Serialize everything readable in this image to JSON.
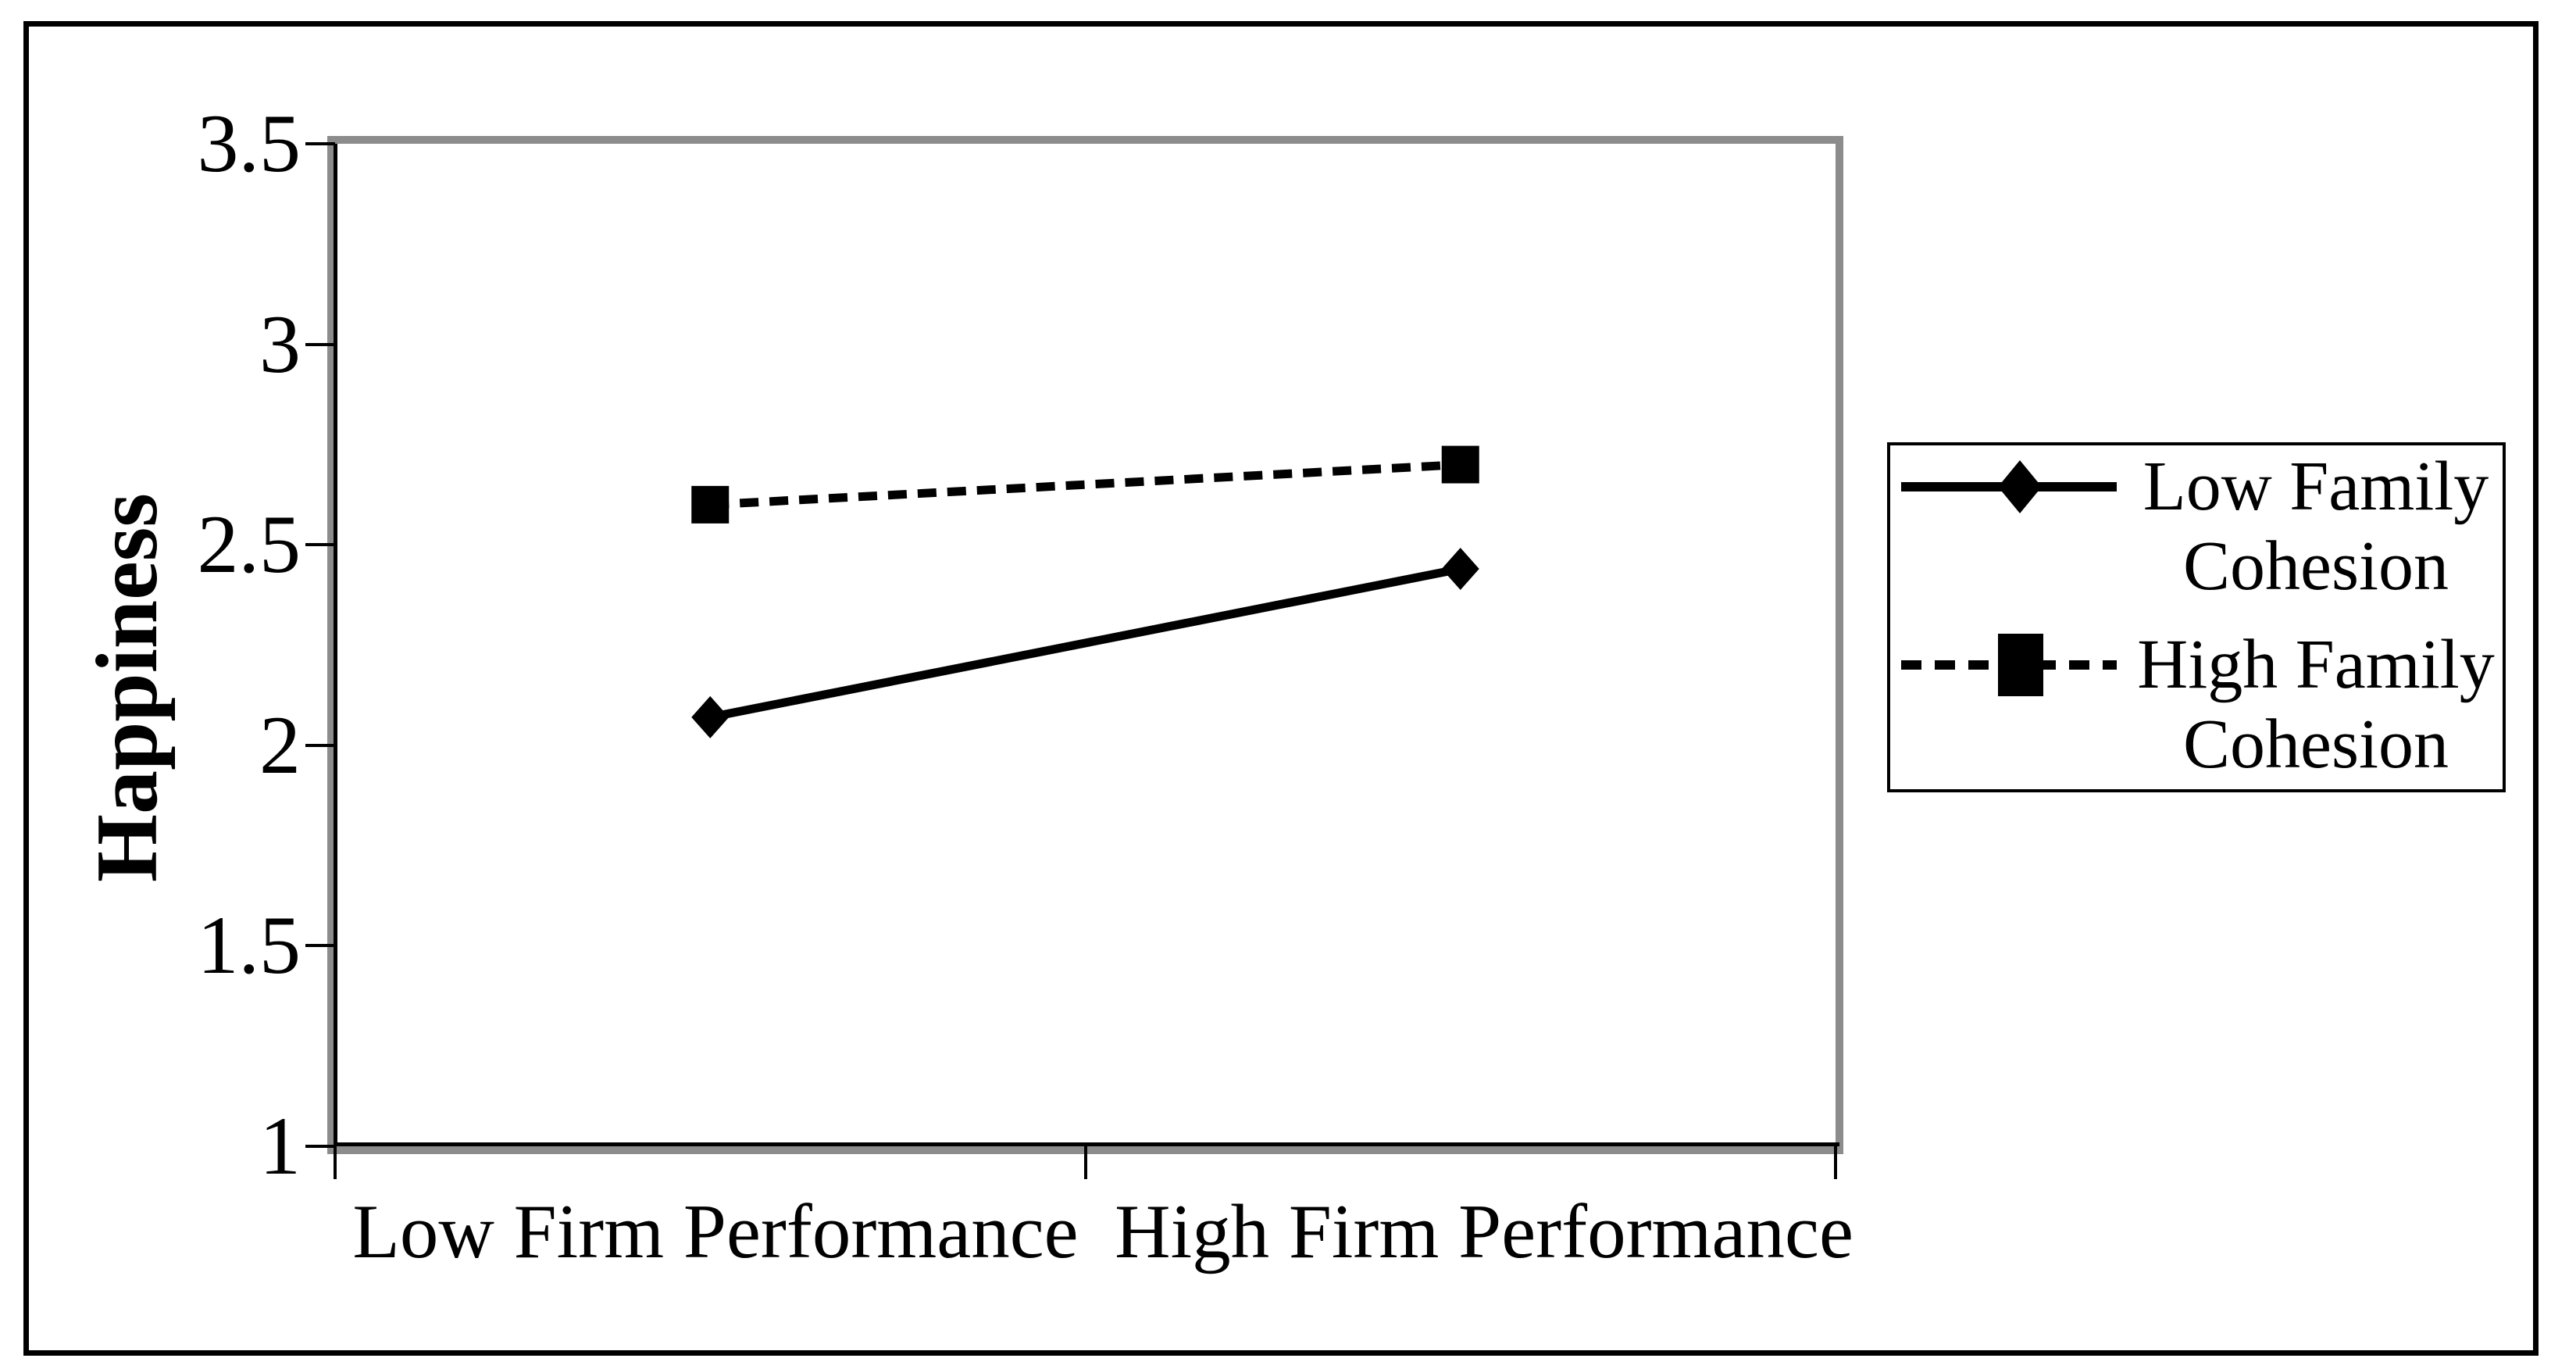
{
  "chart_data": {
    "type": "line",
    "categories": [
      "Low Firm Performance",
      "High Firm Performance"
    ],
    "series": [
      {
        "name": "Low Family Cohesion",
        "values": [
          2.07,
          2.44
        ],
        "line_style": "solid",
        "marker": "diamond",
        "color": "#000000"
      },
      {
        "name": "High Family Cohesion",
        "values": [
          2.6,
          2.7
        ],
        "line_style": "dashed",
        "marker": "square",
        "color": "#000000"
      }
    ],
    "title": "",
    "xlabel": "",
    "ylabel": "Happiness",
    "ylim": [
      1,
      3.5
    ],
    "y_ticks": [
      3.5,
      3,
      2.5,
      2,
      1.5,
      1
    ],
    "y_tick_labels": [
      "3.5",
      "3",
      "2.5",
      "2",
      "1.5",
      "1"
    ],
    "grid": false,
    "legend_position": "right"
  },
  "colors": {
    "series_line": "#000000",
    "plot_border": "#8c8c8c",
    "axis_line": "#000000",
    "outer_border": "#000000",
    "background": "#ffffff"
  }
}
